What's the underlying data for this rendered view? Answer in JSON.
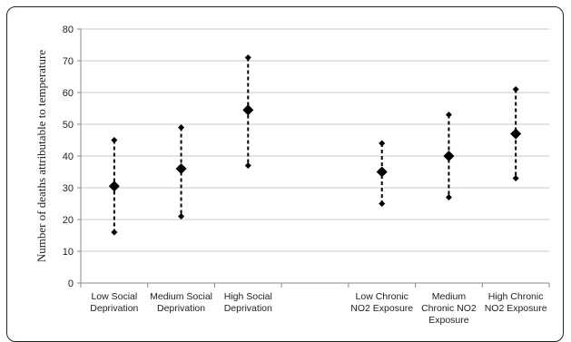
{
  "chart_data": {
    "type": "scatter",
    "title": "",
    "xlabel": "",
    "ylabel": "Number of deaths attributable to temperature",
    "ylim": [
      0,
      80
    ],
    "yticks": [
      0,
      10,
      20,
      30,
      40,
      50,
      60,
      70,
      80
    ],
    "grid": true,
    "categories": [
      [
        "Low Social",
        "Deprivation"
      ],
      [
        "Medium Social",
        "Deprivation"
      ],
      [
        "High Social",
        "Deprivation"
      ],
      [],
      [
        "Low Chronic",
        "NO2 Exposure"
      ],
      [
        "Medium",
        "Chronic NO2",
        "Exposure"
      ],
      [
        "High Chronic",
        "NO2 Exposure"
      ]
    ],
    "points": [
      {
        "category_index": 0,
        "estimate": 30.5,
        "lower": 16,
        "upper": 45
      },
      {
        "category_index": 1,
        "estimate": 36,
        "lower": 21,
        "upper": 49
      },
      {
        "category_index": 2,
        "estimate": 54.5,
        "lower": 37,
        "upper": 71
      },
      {
        "category_index": 4,
        "estimate": 35,
        "lower": 25,
        "upper": 44
      },
      {
        "category_index": 5,
        "estimate": 40,
        "lower": 27,
        "upper": 53
      },
      {
        "category_index": 6,
        "estimate": 47,
        "lower": 33,
        "upper": 61
      }
    ],
    "colors": {
      "marker": "#000000",
      "grid": "#c8c8c8",
      "axis": "#888888"
    }
  }
}
